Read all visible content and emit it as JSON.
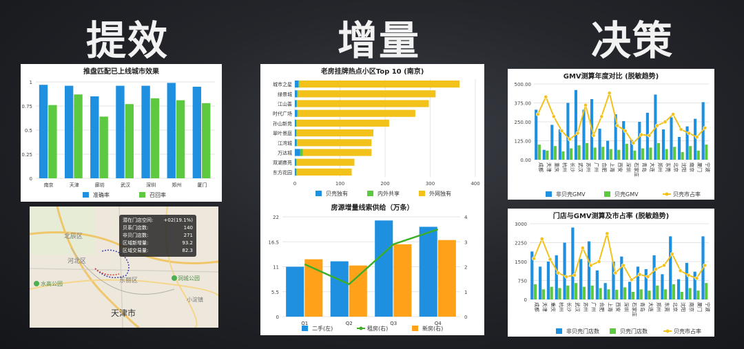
{
  "headings": {
    "left": "提效",
    "middle": "增量",
    "right": "决策"
  },
  "colors": {
    "blue": "#1f8fe0",
    "green": "#5cc940",
    "orange": "#ffa21a",
    "yellow": "#f2c21b",
    "line_green": "#3cae28"
  },
  "chart_data": [
    {
      "type": "bar",
      "title": "推盘匹配已上线城市效果",
      "categories": [
        "南京",
        "天津",
        "廊坊",
        "武汉",
        "深圳",
        "郑州",
        "厦门"
      ],
      "ylim": [
        0,
        1
      ],
      "yticks": [
        "0",
        "0.25",
        "0.5",
        "0.75",
        "1"
      ],
      "series": [
        {
          "name": "准确率",
          "color": "#1f8fe0",
          "values": [
            0.97,
            0.96,
            0.85,
            0.96,
            0.96,
            0.99,
            0.95
          ]
        },
        {
          "name": "召回率",
          "color": "#5cc940",
          "values": [
            0.76,
            0.87,
            0.64,
            0.77,
            0.83,
            0.81,
            0.78
          ]
        }
      ],
      "grid": true,
      "legend": "bottom"
    },
    {
      "type": "bar",
      "orientation": "horizontal",
      "stacked": true,
      "title": "老房挂牌热点小区Top 10 (南京)",
      "categories": [
        "城市之星",
        "绿景城",
        "江山荟",
        "时代广场",
        "孙山新苑",
        "翠叶景庭",
        "江湾城",
        "万达城",
        "双湖嘉苑",
        "东方花园"
      ],
      "xlim": [
        0,
        400
      ],
      "xticks": [
        "0",
        "100",
        "200",
        "300",
        "400"
      ],
      "series": [
        {
          "name": "贝壳独有",
          "color": "#1f8fe0",
          "values": [
            8,
            5,
            4,
            5,
            3,
            3,
            4,
            12,
            3,
            3
          ]
        },
        {
          "name": "内外共享",
          "color": "#5cc940",
          "values": [
            2,
            2,
            1,
            2,
            1,
            1,
            1,
            6,
            1,
            1
          ]
        },
        {
          "name": "外网独有",
          "color": "#f2c21b",
          "values": [
            355,
            305,
            292,
            260,
            205,
            170,
            165,
            152,
            128,
            122
          ]
        }
      ],
      "grid": true,
      "legend": "bottom"
    },
    {
      "type": "bar",
      "title": "房源增量线索供给（万条）",
      "categories": [
        "Q1",
        "Q2",
        "Q3",
        "Q4"
      ],
      "ylim": [
        0,
        22
      ],
      "yticks": [
        "0",
        "5.5",
        "11",
        "16.5",
        "22"
      ],
      "y2lim": [
        0,
        4
      ],
      "y2ticks": [
        "0",
        "1",
        "2",
        "3",
        "4"
      ],
      "series": [
        {
          "name": "二手(左)",
          "type": "bar",
          "axis": "left",
          "color": "#1f8fe0",
          "values": [
            11,
            12.2,
            21.2,
            19.8
          ]
        },
        {
          "name": "租房(右)",
          "type": "line",
          "axis": "right",
          "color": "#3cae28",
          "values": [
            2.1,
            1.3,
            2.9,
            3.5
          ]
        },
        {
          "name": "新房(右)",
          "type": "bar",
          "axis": "right",
          "color": "#ffa21a",
          "values": [
            2.3,
            2.05,
            2.9,
            3.07
          ]
        }
      ],
      "legend": "bottom"
    },
    {
      "type": "bar",
      "title": "GMV测算年度对比 (脱敏趋势)",
      "categories": [
        "成都",
        "天津",
        "重庆",
        "杭州",
        "长沙",
        "武汉",
        "苏州",
        "广州",
        "合肥",
        "上海",
        "西安",
        "深圳",
        "石家庄",
        "青岛",
        "大连",
        "郑州",
        "东莞",
        "北京",
        "沈阳",
        "南京",
        "厦门",
        "宁波"
      ],
      "ylim": [
        0,
        500
      ],
      "yticks": [
        "0.00",
        "125.00",
        "250.00",
        "375.00",
        "500.00"
      ],
      "series": [
        {
          "name": "非贝壳GMV",
          "type": "bar",
          "color": "#1f8fe0",
          "values": [
            330,
            65,
            230,
            200,
            375,
            460,
            330,
            400,
            205,
            125,
            300,
            255,
            130,
            250,
            310,
            430,
            200,
            280,
            150,
            220,
            270,
            380
          ]
        },
        {
          "name": "贝壳GMV",
          "type": "bar",
          "color": "#5cc940",
          "values": [
            100,
            60,
            90,
            55,
            75,
            95,
            110,
            80,
            85,
            70,
            65,
            105,
            60,
            75,
            80,
            110,
            70,
            85,
            50,
            90,
            60,
            100
          ]
        },
        {
          "name": "贝壳市占率",
          "type": "line",
          "color": "#f2c21b",
          "values": [
            0.6,
            0.83,
            0.57,
            0.38,
            0.27,
            0.35,
            0.72,
            0.32,
            0.57,
            0.88,
            0.45,
            0.38,
            0.22,
            0.33,
            0.32,
            0.45,
            0.5,
            0.6,
            0.4,
            0.35,
            0.3,
            0.42
          ]
        }
      ],
      "legend": "bottom"
    },
    {
      "type": "bar",
      "title": "门店与GMV测算及市占率 (脱敏趋势)",
      "categories": [
        "成都",
        "天津",
        "重庆",
        "杭州",
        "长沙",
        "武汉",
        "苏州",
        "广州",
        "合肥",
        "上海",
        "西安",
        "深圳",
        "石家庄",
        "青岛",
        "大连",
        "郑州",
        "东莞",
        "北京",
        "沈阳",
        "南京",
        "厦门",
        "宁波"
      ],
      "ylim": [
        0,
        3000
      ],
      "yticks": [
        "0",
        "750",
        "1500",
        "2250",
        "3000"
      ],
      "series": [
        {
          "name": "非贝壳门店数",
          "type": "bar",
          "color": "#1f8fe0",
          "values": [
            1900,
            1300,
            1500,
            1750,
            2250,
            2850,
            1600,
            2300,
            1150,
            650,
            1500,
            1700,
            700,
            1300,
            1200,
            1750,
            1000,
            2500,
            800,
            1450,
            1100,
            2500
          ]
        },
        {
          "name": "贝壳门店数",
          "type": "bar",
          "color": "#5cc940",
          "values": [
            600,
            400,
            500,
            450,
            550,
            650,
            500,
            550,
            450,
            400,
            380,
            480,
            300,
            400,
            350,
            550,
            400,
            600,
            300,
            450,
            350,
            650
          ]
        },
        {
          "name": "贝壳市占率",
          "type": "line",
          "color": "#f2c21b",
          "values": [
            0.54,
            0.8,
            0.53,
            0.35,
            0.3,
            0.32,
            0.68,
            0.45,
            0.5,
            0.87,
            0.35,
            0.45,
            0.26,
            0.33,
            0.3,
            0.4,
            0.45,
            0.6,
            0.38,
            0.32,
            0.28,
            0.45
          ]
        }
      ],
      "legend": "bottom"
    }
  ],
  "map": {
    "city_label": "天津市",
    "place_labels": [
      "北辰区",
      "东丽区",
      "河北区",
      "水高公园",
      "洞城公园",
      "小淀镇"
    ],
    "tooltip": [
      {
        "label": "潜在门店空间:",
        "value": "+02(19.1%)"
      },
      {
        "label": "贝系门店数:",
        "value": "140"
      },
      {
        "label": "非贝门店数:",
        "value": "271"
      },
      {
        "label": "区域新增量:",
        "value": "93.2"
      },
      {
        "label": "区域交易量:",
        "value": "82.3"
      }
    ]
  }
}
